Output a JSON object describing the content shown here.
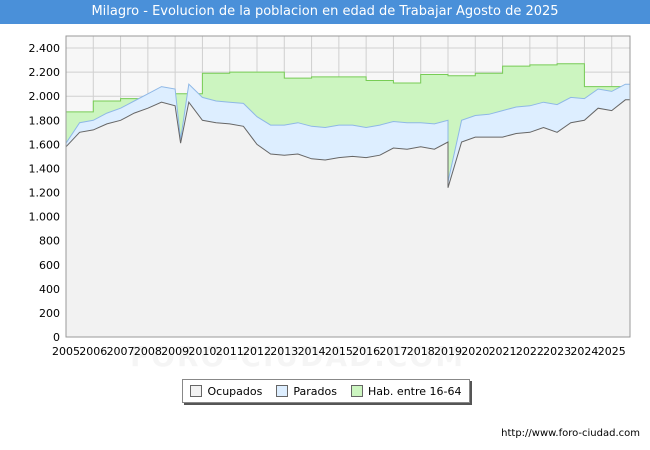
{
  "title": "Milagro - Evolucion de la poblacion en edad de Trabajar Agosto de 2025",
  "source": "http://www.foro-ciudad.com",
  "watermark": "FORO-CIUDAD.COM",
  "colors": {
    "title_bg": "#4a90d9",
    "ocupados_fill": "#f2f2f2",
    "ocupados_line": "#666666",
    "parados_fill": "#ddeeff",
    "parados_line": "#8fb8e6",
    "hab_fill": "#ccf5c0",
    "hab_line": "#77cc55",
    "grid": "#d0d0d0"
  },
  "chart_data": {
    "type": "area",
    "title": "Milagro - Evolucion de la poblacion en edad de Trabajar Agosto de 2025",
    "xlabel": "",
    "ylabel": "",
    "xlim": [
      2005,
      2025.67
    ],
    "ylim": [
      0,
      2500
    ],
    "y_ticks": [
      0,
      200,
      400,
      600,
      800,
      1000,
      1200,
      1400,
      1600,
      1800,
      2000,
      2200,
      2400
    ],
    "y_tick_labels": [
      "0",
      "200",
      "400",
      "600",
      "800",
      "1.000",
      "1.200",
      "1.400",
      "1.600",
      "1.800",
      "2.000",
      "2.200",
      "2.400"
    ],
    "x_tick_labels": [
      "2005",
      "2006",
      "2007",
      "2008",
      "2009",
      "2010",
      "2011",
      "2012",
      "2013",
      "2014",
      "2015",
      "2016",
      "2017",
      "2018",
      "2019",
      "2020",
      "2021",
      "2022",
      "2023",
      "2024",
      "2025"
    ],
    "legend": [
      "Ocupados",
      "Parados",
      "Hab. entre 16-64"
    ],
    "series": [
      {
        "name": "Hab. entre 16-64",
        "step": true,
        "x": [
          2005,
          2006,
          2007,
          2008,
          2009,
          2010,
          2011,
          2012,
          2013,
          2014,
          2015,
          2016,
          2017,
          2018,
          2019,
          2020,
          2021,
          2022,
          2023,
          2024,
          2025.67
        ],
        "values": [
          1870,
          1960,
          1980,
          2000,
          2020,
          2190,
          2200,
          2200,
          2150,
          2160,
          2160,
          2130,
          2110,
          2180,
          2170,
          2190,
          2250,
          2260,
          2270,
          2080,
          2080
        ]
      },
      {
        "name": "Parados",
        "x": [
          2005,
          2005.5,
          2006,
          2006.5,
          2007,
          2007.5,
          2008,
          2008.5,
          2009,
          2009.5,
          2010,
          2010.5,
          2011,
          2011.5,
          2012,
          2012.5,
          2013,
          2013.5,
          2014,
          2014.5,
          2015,
          2015.5,
          2016,
          2016.5,
          2017,
          2017.5,
          2018,
          2018.5,
          2019,
          2019.5,
          2020,
          2020.5,
          2021,
          2021.5,
          2022,
          2022.5,
          2023,
          2023.5,
          2024,
          2024.5,
          2025,
          2025.5
        ],
        "values": [
          1610,
          1780,
          1800,
          1860,
          1900,
          1960,
          2020,
          2080,
          2060,
          2100,
          1990,
          1960,
          1950,
          1940,
          1830,
          1760,
          1760,
          1780,
          1750,
          1740,
          1760,
          1760,
          1740,
          1760,
          1790,
          1780,
          1780,
          1770,
          1800,
          1800,
          1840,
          1850,
          1880,
          1910,
          1920,
          1950,
          1930,
          1990,
          1980,
          2060,
          2040,
          2100
        ]
      },
      {
        "name": "Ocupados",
        "x": [
          2005,
          2005.5,
          2006,
          2006.5,
          2007,
          2007.5,
          2008,
          2008.5,
          2009,
          2009.5,
          2010,
          2010.5,
          2011,
          2011.5,
          2012,
          2012.5,
          2013,
          2013.5,
          2014,
          2014.5,
          2015,
          2015.5,
          2016,
          2016.5,
          2017,
          2017.5,
          2018,
          2018.5,
          2019,
          2019.5,
          2020,
          2020.5,
          2021,
          2021.5,
          2022,
          2022.5,
          2023,
          2023.5,
          2024,
          2024.5,
          2025,
          2025.5
        ],
        "values": [
          1580,
          1700,
          1720,
          1770,
          1800,
          1860,
          1900,
          1950,
          1920,
          1950,
          1800,
          1780,
          1770,
          1750,
          1600,
          1520,
          1510,
          1520,
          1480,
          1470,
          1490,
          1500,
          1490,
          1510,
          1570,
          1560,
          1580,
          1560,
          1620,
          1620,
          1660,
          1660,
          1660,
          1690,
          1700,
          1740,
          1700,
          1780,
          1800,
          1900,
          1880,
          1970
        ]
      }
    ],
    "spikes": [
      {
        "series": "Ocupados",
        "x": 2009.2,
        "value": 1610
      },
      {
        "series": "Parados",
        "x": 2009.2,
        "value": 1640
      },
      {
        "series": "Ocupados",
        "x": 2019.0,
        "value": 1240
      },
      {
        "series": "Parados",
        "x": 2019.0,
        "value": 1290
      }
    ]
  }
}
